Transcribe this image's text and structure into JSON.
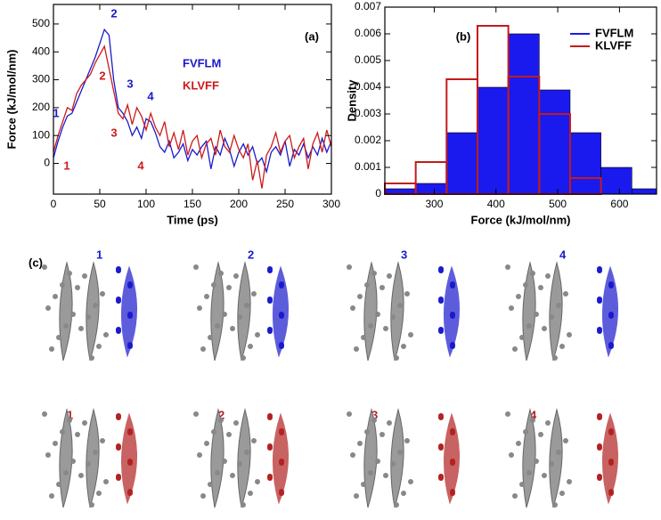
{
  "chart_data": [
    {
      "type": "line",
      "panel_label": "(a)",
      "xlabel": "Time (ps)",
      "ylabel": "Force (kJ/mol/nm)",
      "x": [
        0,
        5,
        10,
        15,
        20,
        25,
        30,
        35,
        40,
        45,
        50,
        55,
        60,
        65,
        70,
        75,
        80,
        85,
        90,
        95,
        100,
        105,
        110,
        115,
        120,
        125,
        130,
        135,
        140,
        145,
        150,
        155,
        160,
        165,
        170,
        175,
        180,
        185,
        190,
        195,
        200,
        205,
        210,
        215,
        220,
        225,
        230,
        235,
        240,
        245,
        250,
        255,
        260,
        265,
        270,
        275,
        280,
        285,
        290,
        295,
        300
      ],
      "series": [
        {
          "name": "FVFLM",
          "color": "#1a1acc",
          "values": [
            20,
            80,
            130,
            170,
            180,
            220,
            260,
            300,
            340,
            380,
            430,
            480,
            460,
            300,
            200,
            180,
            150,
            100,
            130,
            90,
            160,
            150,
            110,
            60,
            40,
            80,
            20,
            40,
            70,
            10,
            50,
            30,
            60,
            80,
            -20,
            60,
            30,
            90,
            50,
            -10,
            40,
            70,
            30,
            60,
            0,
            20,
            -30,
            40,
            60,
            30,
            80,
            -10,
            50,
            30,
            70,
            20,
            60,
            30,
            90,
            40,
            80
          ]
        },
        {
          "name": "KLVFF",
          "color": "#cc1a1a",
          "values": [
            40,
            100,
            150,
            200,
            190,
            250,
            280,
            300,
            320,
            360,
            390,
            420,
            340,
            260,
            180,
            160,
            210,
            140,
            200,
            170,
            120,
            180,
            130,
            100,
            150,
            60,
            110,
            50,
            120,
            30,
            80,
            100,
            20,
            70,
            90,
            30,
            120,
            60,
            40,
            100,
            50,
            20,
            70,
            -60,
            10,
            -90,
            30,
            60,
            110,
            40,
            80,
            100,
            20,
            60,
            90,
            -20,
            70,
            110,
            40,
            120,
            60
          ]
        }
      ],
      "annotations": [
        {
          "text": "1",
          "color": "#1a1acc"
        },
        {
          "text": "2",
          "color": "#1a1acc"
        },
        {
          "text": "3",
          "color": "#1a1acc"
        },
        {
          "text": "4",
          "color": "#1a1acc"
        },
        {
          "text": "1",
          "color": "#cc1a1a"
        },
        {
          "text": "2",
          "color": "#cc1a1a"
        },
        {
          "text": "3",
          "color": "#cc1a1a"
        },
        {
          "text": "4",
          "color": "#cc1a1a"
        }
      ],
      "xlim": [
        0,
        300
      ],
      "xticks": [
        0,
        50,
        100,
        150,
        200,
        250,
        300
      ],
      "ylim": [
        -110,
        570
      ],
      "yticks": [
        0,
        100,
        200,
        300,
        400,
        500
      ]
    },
    {
      "type": "histogram",
      "panel_label": "(b)",
      "xlabel": "Force (kJ/mol/nm)",
      "ylabel": "Density",
      "bins": [
        220,
        270,
        320,
        370,
        420,
        470,
        520,
        570,
        620,
        660
      ],
      "series": [
        {
          "name": "FVFLM",
          "color": "#1a1aee",
          "style": "filled",
          "values": [
            0.0002,
            0.0004,
            0.0023,
            0.004,
            0.006,
            0.0039,
            0.0023,
            0.001,
            0.0002
          ]
        },
        {
          "name": "KLVFF",
          "color": "#c41a1a",
          "style": "outline",
          "values": [
            0.0004,
            0.0012,
            0.0043,
            0.0063,
            0.0044,
            0.003,
            0.0006,
            0,
            0
          ]
        }
      ],
      "xlim": [
        220,
        660
      ],
      "xticks": [
        300,
        400,
        500,
        600
      ],
      "ylim": [
        0,
        0.007
      ],
      "yticks": [
        0,
        0.001,
        0.002,
        0.003,
        0.004,
        0.005,
        0.006,
        0.007
      ]
    }
  ],
  "panel_c": {
    "label": "(c)",
    "top_labels": [
      "1",
      "2",
      "3",
      "4"
    ],
    "top_color": "#1a1acc",
    "bottom_labels": [
      "1",
      "2",
      "3",
      "4"
    ],
    "bottom_color": "#b22222"
  }
}
